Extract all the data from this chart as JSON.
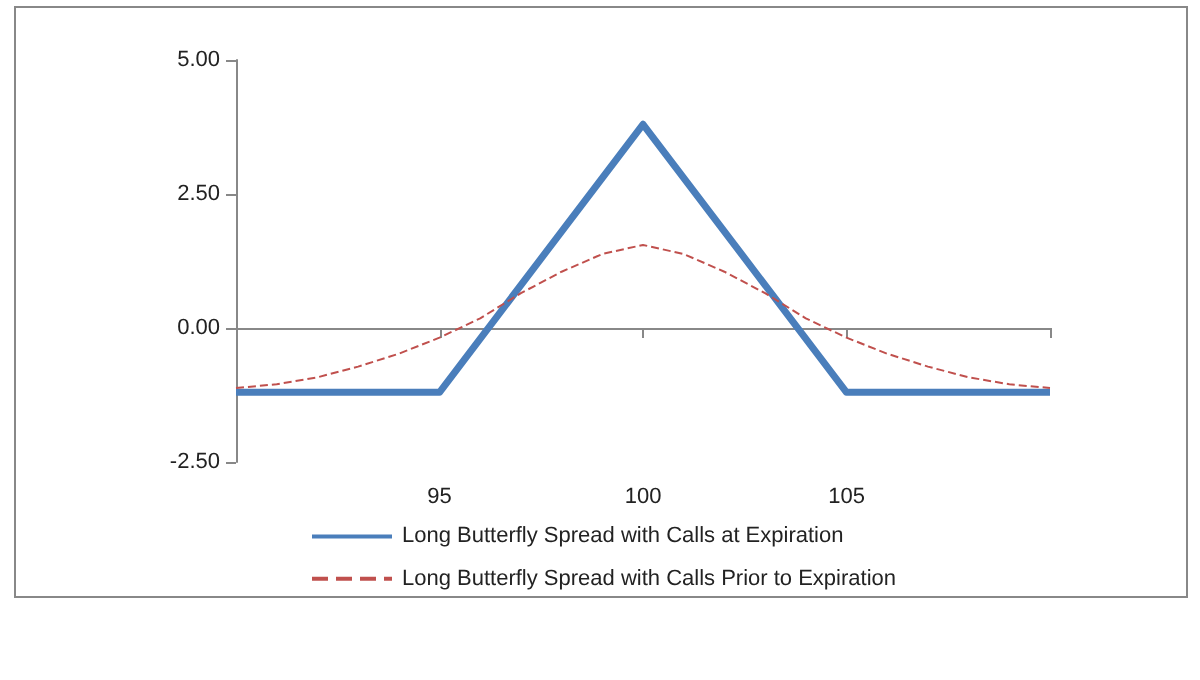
{
  "chart_data": {
    "type": "line",
    "x": [
      90,
      95,
      100,
      105,
      110
    ],
    "series": [
      {
        "name": "Long Butterfly Spread with Calls at Expiration",
        "color": "#4a7ebb",
        "line_style": "solid",
        "values": [
          -1.2,
          -1.2,
          3.8,
          -1.2,
          -1.2
        ]
      },
      {
        "name": "Long Butterfly Spread with Calls Prior to Expiration",
        "color": "#c0504d",
        "line_style": "dashed",
        "x": [
          90,
          91,
          92,
          93,
          94,
          95,
          96,
          97,
          98,
          99,
          100,
          101,
          102,
          103,
          104,
          105,
          106,
          107,
          108,
          109,
          110
        ],
        "values": [
          -1.12,
          -1.05,
          -0.92,
          -0.72,
          -0.48,
          -0.18,
          0.18,
          0.65,
          1.05,
          1.38,
          1.55,
          1.38,
          1.05,
          0.65,
          0.18,
          -0.18,
          -0.48,
          -0.72,
          -0.92,
          -1.05,
          -1.12
        ]
      }
    ],
    "xlim": [
      90,
      110
    ],
    "xticks": [
      {
        "value": 90,
        "label": null
      },
      95,
      100,
      105,
      {
        "value": 110,
        "label": null
      }
    ],
    "ylim": [
      -2.5,
      5
    ],
    "yticks": [
      {
        "value": -2.5,
        "label": "-2.50"
      },
      {
        "value": 0,
        "label": "0.00"
      },
      {
        "value": 2.5,
        "label": "2.50"
      },
      {
        "value": 5,
        "label": "5.00"
      }
    ],
    "legend": "bottom",
    "marker": "none"
  }
}
